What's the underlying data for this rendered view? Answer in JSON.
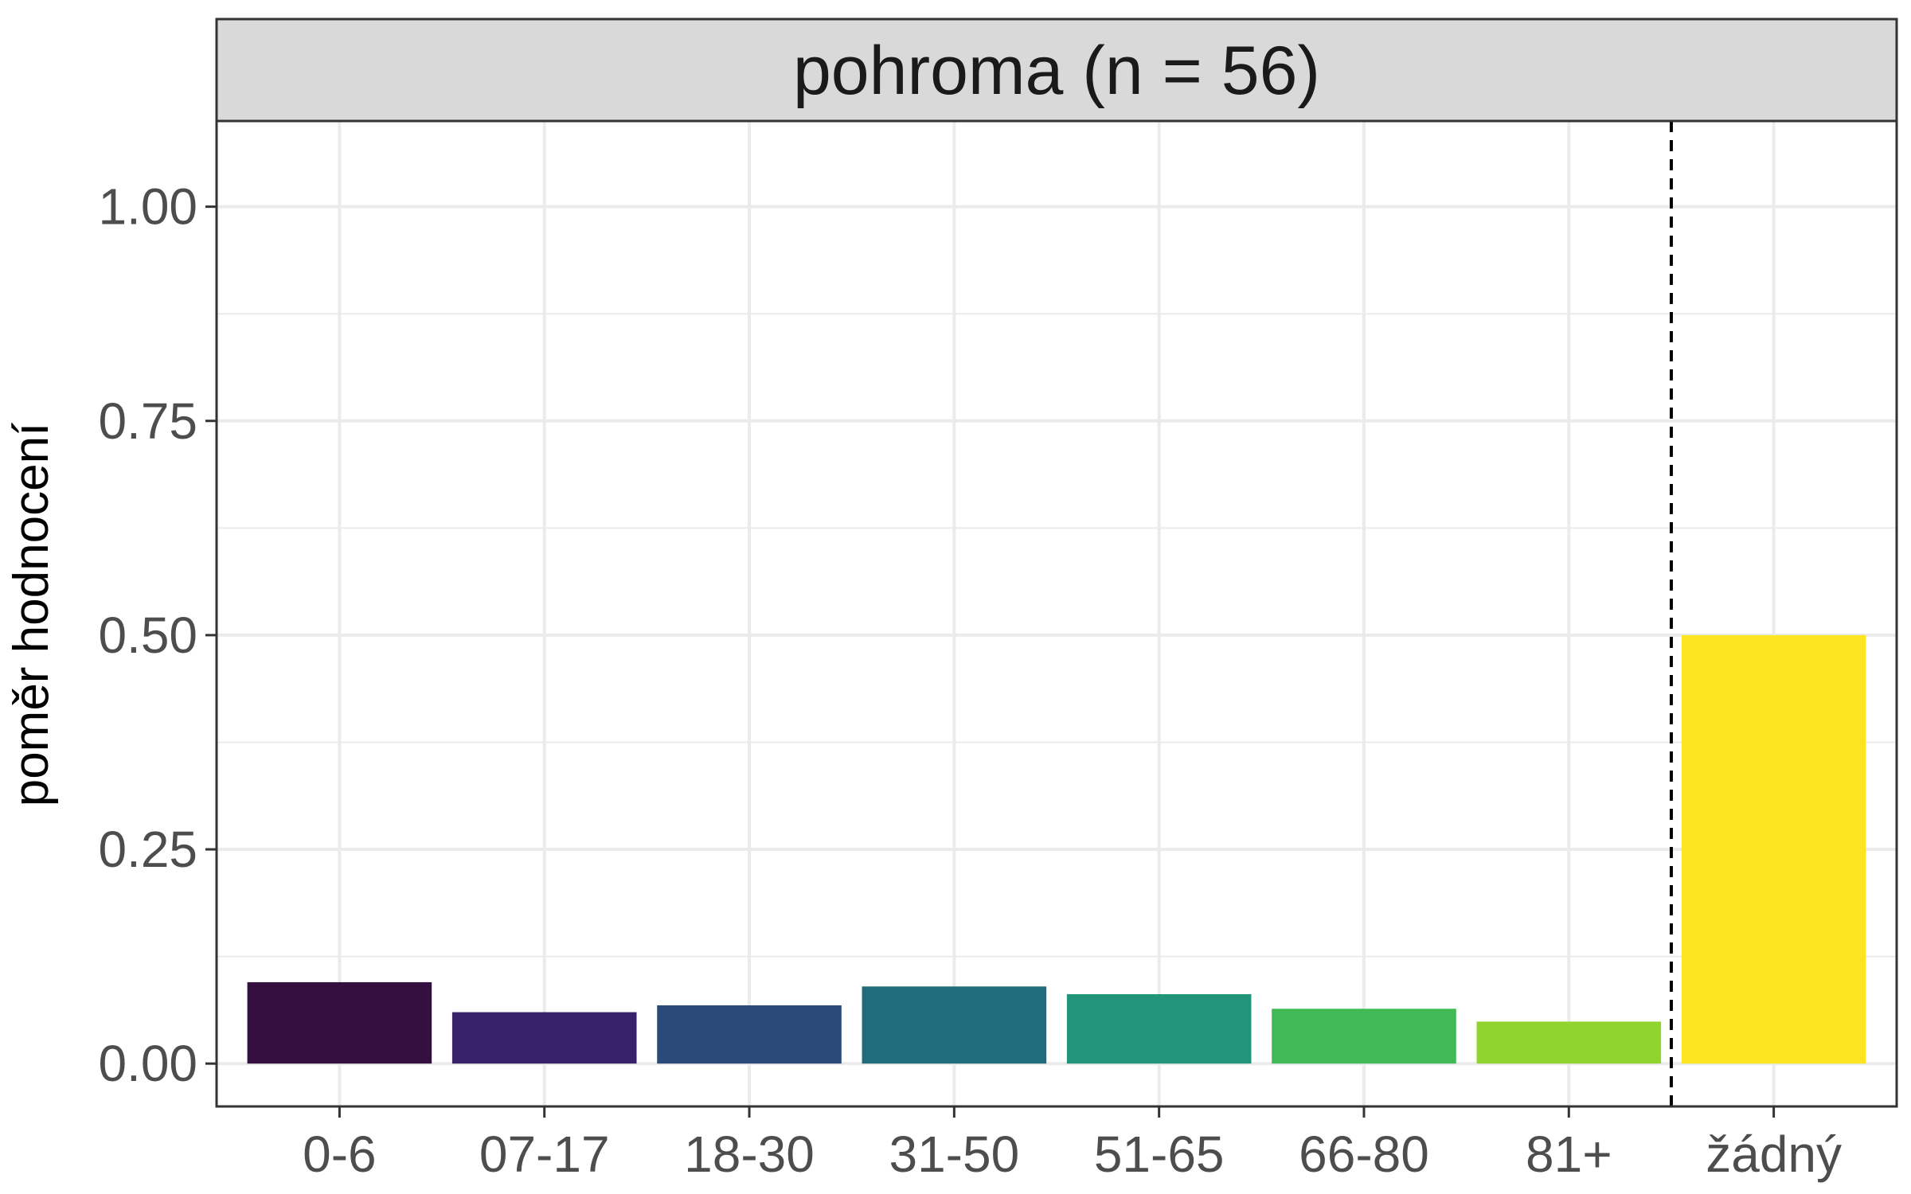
{
  "chart_data": {
    "type": "bar",
    "facet_title": "pohroma (n = 56)",
    "xlabel": "",
    "ylabel": "poměr hodnocení",
    "categories": [
      "0-6",
      "07-17",
      "18-30",
      "31-50",
      "51-65",
      "66-80",
      "81+",
      "žádný"
    ],
    "values": [
      0.095,
      0.06,
      0.068,
      0.09,
      0.081,
      0.064,
      0.049,
      0.5
    ],
    "colors": [
      "#350F3F",
      "#37226A",
      "#2A4A7B",
      "#216C7C",
      "#21957A",
      "#41BA55",
      "#8FD52E",
      "#FDE421"
    ],
    "ylim": [
      -0.05,
      1.1
    ],
    "yticks": [
      0,
      0.25,
      0.5,
      0.75,
      1
    ],
    "ytick_labels": [
      "0.00",
      "0.25",
      "0.50",
      "0.75",
      "1.00"
    ],
    "reference_line": {
      "style": "dashed",
      "between_categories": [
        "81+",
        "žádný"
      ]
    },
    "grid": true,
    "legend": "none"
  }
}
